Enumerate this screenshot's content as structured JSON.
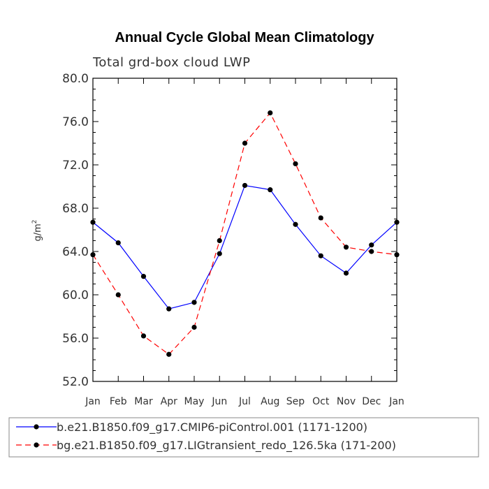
{
  "chart_data": {
    "type": "line",
    "title": "Annual Cycle Global Mean Climatology",
    "subtitle": "Total grd-box cloud LWP",
    "xlabel": "",
    "ylabel": "g/m",
    "ylabel_superscript": "2",
    "categories": [
      "Jan",
      "Feb",
      "Mar",
      "Apr",
      "May",
      "Jun",
      "Jul",
      "Aug",
      "Sep",
      "Oct",
      "Nov",
      "Dec",
      "Jan"
    ],
    "ylim": [
      52.0,
      80.0
    ],
    "yticks": [
      "52.0",
      "56.0",
      "60.0",
      "64.0",
      "68.0",
      "72.0",
      "76.0",
      "80.0"
    ],
    "series": [
      {
        "name": "b.e21.B1850.f09_g17.CMIP6-piControl.001 (1171-1200)",
        "color": "#0000ff",
        "dash": "solid",
        "values": [
          66.7,
          64.8,
          61.7,
          58.7,
          59.3,
          63.8,
          70.1,
          69.7,
          66.5,
          63.6,
          62.0,
          64.6,
          66.7
        ]
      },
      {
        "name": "bg.e21.B1850.f09_g17.LIGtransient_redo_126.5ka (171-200)",
        "color": "#ff0000",
        "dash": "dashed",
        "values": [
          63.7,
          60.0,
          56.2,
          54.5,
          57.0,
          65.0,
          74.0,
          76.8,
          72.1,
          67.1,
          64.4,
          64.0,
          63.7
        ]
      }
    ]
  }
}
